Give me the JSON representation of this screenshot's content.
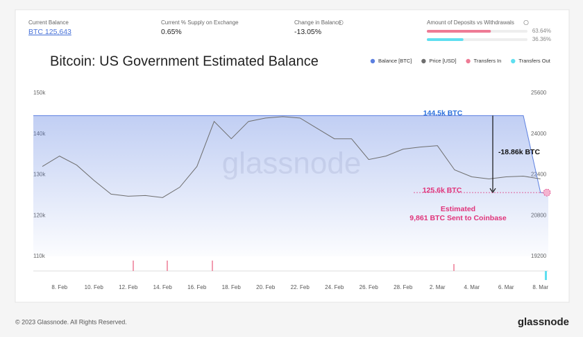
{
  "stats": [
    {
      "label": "Current Balance",
      "value": "BTC 125,643"
    },
    {
      "label": "Current % Supply on Exchange",
      "value": "0.65%"
    },
    {
      "label": "Change in Balance",
      "value": "-13.05%"
    }
  ],
  "deposits": {
    "label": "Amount of Deposits vs Withdrawals",
    "values": [
      63.64,
      36.36
    ],
    "value_labels": [
      "63.64%",
      "36.36%"
    ],
    "colors": [
      "#ee7b95",
      "#5fdff0"
    ]
  },
  "chart_data": {
    "type": "area_line",
    "title": "Bitcoin: US Government Estimated Balance",
    "watermark": "glassnode",
    "legend": [
      {
        "name": "Balance [BTC]",
        "color": "#5b7fe0"
      },
      {
        "name": "Price [USD]",
        "color": "#6e6e6e"
      },
      {
        "name": "Transfers In",
        "color": "#ee7b95"
      },
      {
        "name": "Transfers Out",
        "color": "#5fdff0"
      }
    ],
    "categories": [
      null,
      "8. Feb",
      null,
      "10. Feb",
      null,
      "12. Feb",
      null,
      "14. Feb",
      null,
      "16. Feb",
      null,
      "18. Feb",
      null,
      "20. Feb",
      null,
      "22. Feb",
      null,
      "24. Feb",
      null,
      "26. Feb",
      null,
      "28. Feb",
      null,
      "2. Mar",
      null,
      "4. Mar",
      null,
      "6. Mar",
      null,
      "8. Mar"
    ],
    "series": [
      {
        "color": "#5b7fe0",
        "values": [
          144500,
          144500,
          144500,
          144500,
          144500,
          144500,
          144500,
          144500,
          144500,
          144500,
          144500,
          144500,
          144500,
          144500,
          144500,
          144500,
          144500,
          144500,
          144500,
          144500,
          144500,
          144500,
          144500,
          144500,
          144500,
          144500,
          144500,
          144500,
          144500,
          125643
        ]
      },
      {
        "color": "#6e6e6e",
        "axis": "y2",
        "values": [
          22725,
          23132,
          22779,
          22183,
          21640,
          21559,
          21586,
          21505,
          21912,
          22725,
          24488,
          23810,
          24488,
          24624,
          24678,
          24624,
          24217,
          23810,
          23810,
          22996,
          23132,
          23403,
          23485,
          23539,
          22590,
          22319,
          22237,
          22319,
          22346,
          22237
        ]
      }
    ],
    "ylim": [
      110000,
      150000
    ],
    "yticks": [
      {
        "value": 110000,
        "label": "110k"
      },
      {
        "value": 120000,
        "label": "120k"
      },
      {
        "value": 130000,
        "label": "130k"
      },
      {
        "value": 140000,
        "label": "140k"
      },
      {
        "value": 150000,
        "label": "150k"
      }
    ],
    "y2lim": [
      19200,
      25600
    ],
    "y2ticks": [
      19200,
      20800,
      22400,
      24000,
      25600
    ],
    "annotations": [
      "144.5k BTC",
      "-18.86k BTC",
      "125.6k BTC",
      "Estimated",
      "9,861 BTC Sent to Coinbase"
    ]
  },
  "footer": {
    "copyright": "© 2023 Glassnode. All Rights Reserved.",
    "logo": "glassnode"
  }
}
